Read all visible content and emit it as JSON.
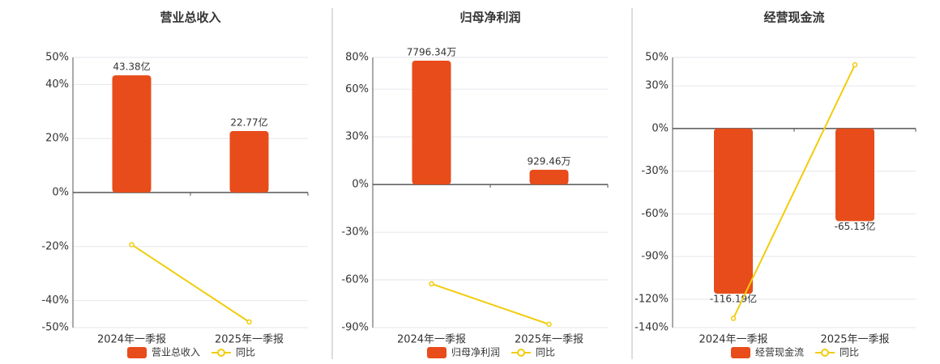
{
  "chart_data": [
    {
      "type": "bar",
      "title": "营业总收入",
      "categories": [
        "2024年一季报",
        "2025年一季报"
      ],
      "series": [
        {
          "name": "营业总收入",
          "color": "#e84c1b",
          "axis": "y2",
          "values": [
            43.38,
            22.77
          ],
          "value_labels": [
            "43.38亿",
            "22.77亿"
          ]
        },
        {
          "name": "同比",
          "color": "#f2cc0c",
          "type": "line",
          "values": [
            -19.3,
            -47.9
          ]
        }
      ],
      "ylim": [
        -50,
        50
      ],
      "y2lim": [
        -50,
        50
      ],
      "yticks": [
        {
          "value": 50,
          "label": "50%"
        },
        {
          "value": 40,
          "label": "40%"
        },
        {
          "value": 20,
          "label": "20%"
        },
        {
          "value": 0,
          "label": "0%"
        },
        {
          "value": -20,
          "label": "-20%"
        },
        {
          "value": -40,
          "label": "-40%"
        },
        {
          "value": -50,
          "label": "-50%"
        }
      ],
      "grid": true
    },
    {
      "type": "bar",
      "title": "归母净利润",
      "categories": [
        "2024年一季报",
        "2025年一季报"
      ],
      "series": [
        {
          "name": "归母净利润",
          "color": "#e84c1b",
          "axis": "y2",
          "values": [
            7796.34,
            929.46
          ],
          "value_labels": [
            "7796.34万",
            "929.46万"
          ]
        },
        {
          "name": "同比",
          "color": "#f2cc0c",
          "type": "line",
          "values": [
            -62.4,
            -87.9
          ]
        }
      ],
      "ylim": [
        -90,
        80
      ],
      "y2lim": [
        -9000,
        8000
      ],
      "yticks": [
        {
          "value": 80,
          "label": "80%"
        },
        {
          "value": 60,
          "label": "60%"
        },
        {
          "value": 30,
          "label": "30%"
        },
        {
          "value": 0,
          "label": "0%"
        },
        {
          "value": -30,
          "label": "-30%"
        },
        {
          "value": -60,
          "label": "-60%"
        },
        {
          "value": -90,
          "label": "-90%"
        }
      ],
      "grid": true
    },
    {
      "type": "bar",
      "title": "经营现金流",
      "categories": [
        "2024年一季报",
        "2025年一季报"
      ],
      "series": [
        {
          "name": "经营现金流",
          "color": "#e84c1b",
          "axis": "y2",
          "values": [
            -116.19,
            -65.13
          ],
          "value_labels": [
            "-116.19亿",
            "-65.13亿"
          ]
        },
        {
          "name": "同比",
          "color": "#f2cc0c",
          "type": "line",
          "values": [
            -133.5,
            44.8
          ]
        }
      ],
      "ylim": [
        -140,
        50
      ],
      "y2lim": [
        -140,
        50
      ],
      "yticks": [
        {
          "value": 50,
          "label": "50%"
        },
        {
          "value": 30,
          "label": "30%"
        },
        {
          "value": 0,
          "label": "0%"
        },
        {
          "value": -30,
          "label": "-30%"
        },
        {
          "value": -60,
          "label": "-60%"
        },
        {
          "value": -90,
          "label": "-90%"
        },
        {
          "value": -120,
          "label": "-120%"
        },
        {
          "value": -140,
          "label": "-140%"
        }
      ],
      "grid": true
    }
  ]
}
